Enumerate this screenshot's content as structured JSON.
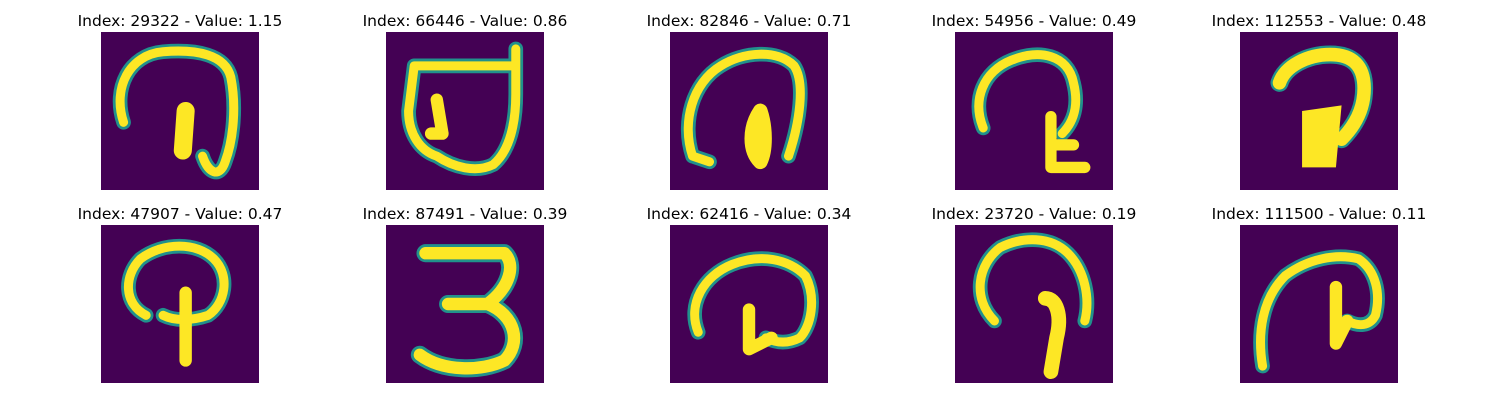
{
  "colors": {
    "background": "#440154",
    "low": "#21918c",
    "mid": "#5ec962",
    "high": "#fde725"
  },
  "panels": [
    {
      "title": "Index: 29322 - Value: 1.15",
      "glyph": "curl-with-stem"
    },
    {
      "title": "Index: 66446 - Value: 0.86",
      "glyph": "boxed-hook"
    },
    {
      "title": "Index: 82846 - Value: 0.71",
      "glyph": "loop-with-tail"
    },
    {
      "title": "Index: 54956 - Value: 0.49",
      "glyph": "mushroom-hook"
    },
    {
      "title": "Index: 112553 - Value: 0.48",
      "glyph": "thick-hook"
    },
    {
      "title": "Index: 47907 - Value: 0.47",
      "glyph": "p-shape"
    },
    {
      "title": "Index: 87491 - Value: 0.39",
      "glyph": "digit-three"
    },
    {
      "title": "Index: 62416 - Value: 0.34",
      "glyph": "wide-curl"
    },
    {
      "title": "Index: 23720 - Value: 0.19",
      "glyph": "umbrella-stem"
    },
    {
      "title": "Index: 111500 - Value: 0.11",
      "glyph": "hook-with-stem"
    }
  ]
}
